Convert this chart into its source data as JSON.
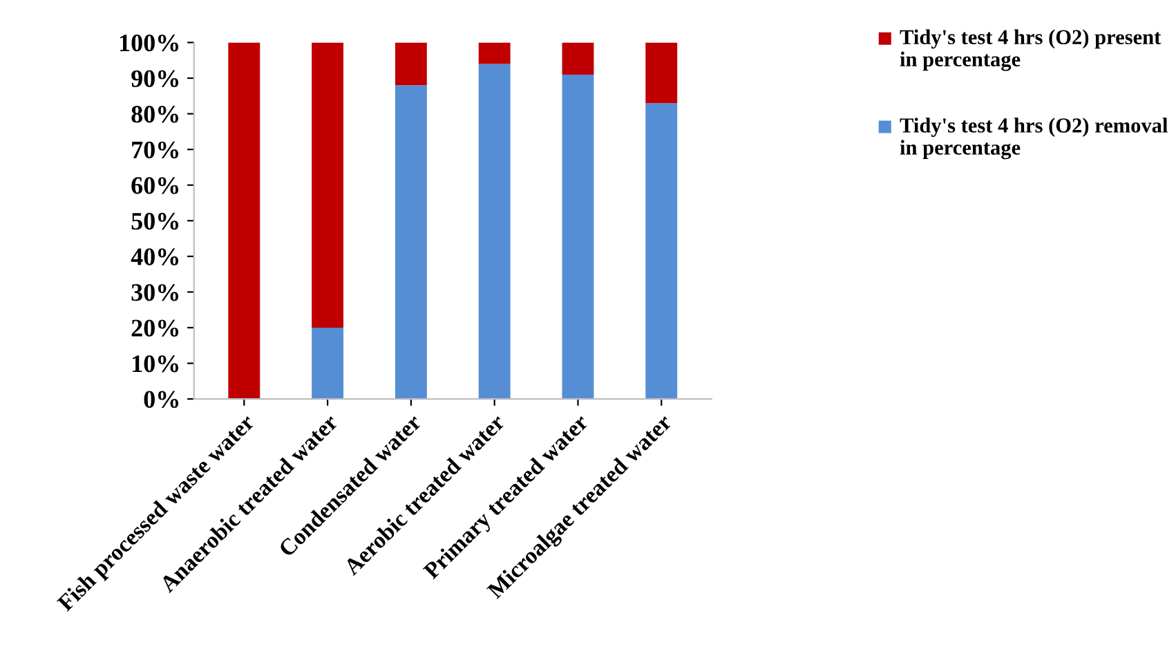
{
  "chart_data": {
    "type": "bar",
    "stacked": true,
    "categories": [
      "Fish processed waste water",
      "Anaerobic treated water",
      "Condensated water",
      "Aerobic treated water",
      "Primary treated water",
      "Microalgae treated water"
    ],
    "series": [
      {
        "name": "Tidy's test 4 hrs (O2) removal in percentage",
        "color": "#558ed5",
        "values": [
          0,
          20,
          88,
          94,
          91,
          83
        ]
      },
      {
        "name": "Tidy's test 4 hrs (O2) present in percentage",
        "color": "#c00000",
        "values": [
          100,
          80,
          12,
          6,
          9,
          17
        ]
      }
    ],
    "ylim": [
      0,
      100
    ],
    "yticks": [
      {
        "value": 0,
        "label": "0%"
      },
      {
        "value": 10,
        "label": "10%"
      },
      {
        "value": 20,
        "label": "20%"
      },
      {
        "value": 30,
        "label": "30%"
      },
      {
        "value": 40,
        "label": "40%"
      },
      {
        "value": 50,
        "label": "50%"
      },
      {
        "value": 60,
        "label": "60%"
      },
      {
        "value": 70,
        "label": "70%"
      },
      {
        "value": 80,
        "label": "80%"
      },
      {
        "value": 90,
        "label": "90%"
      },
      {
        "value": 100,
        "label": "100%"
      }
    ],
    "grid": false,
    "legend": "right"
  }
}
